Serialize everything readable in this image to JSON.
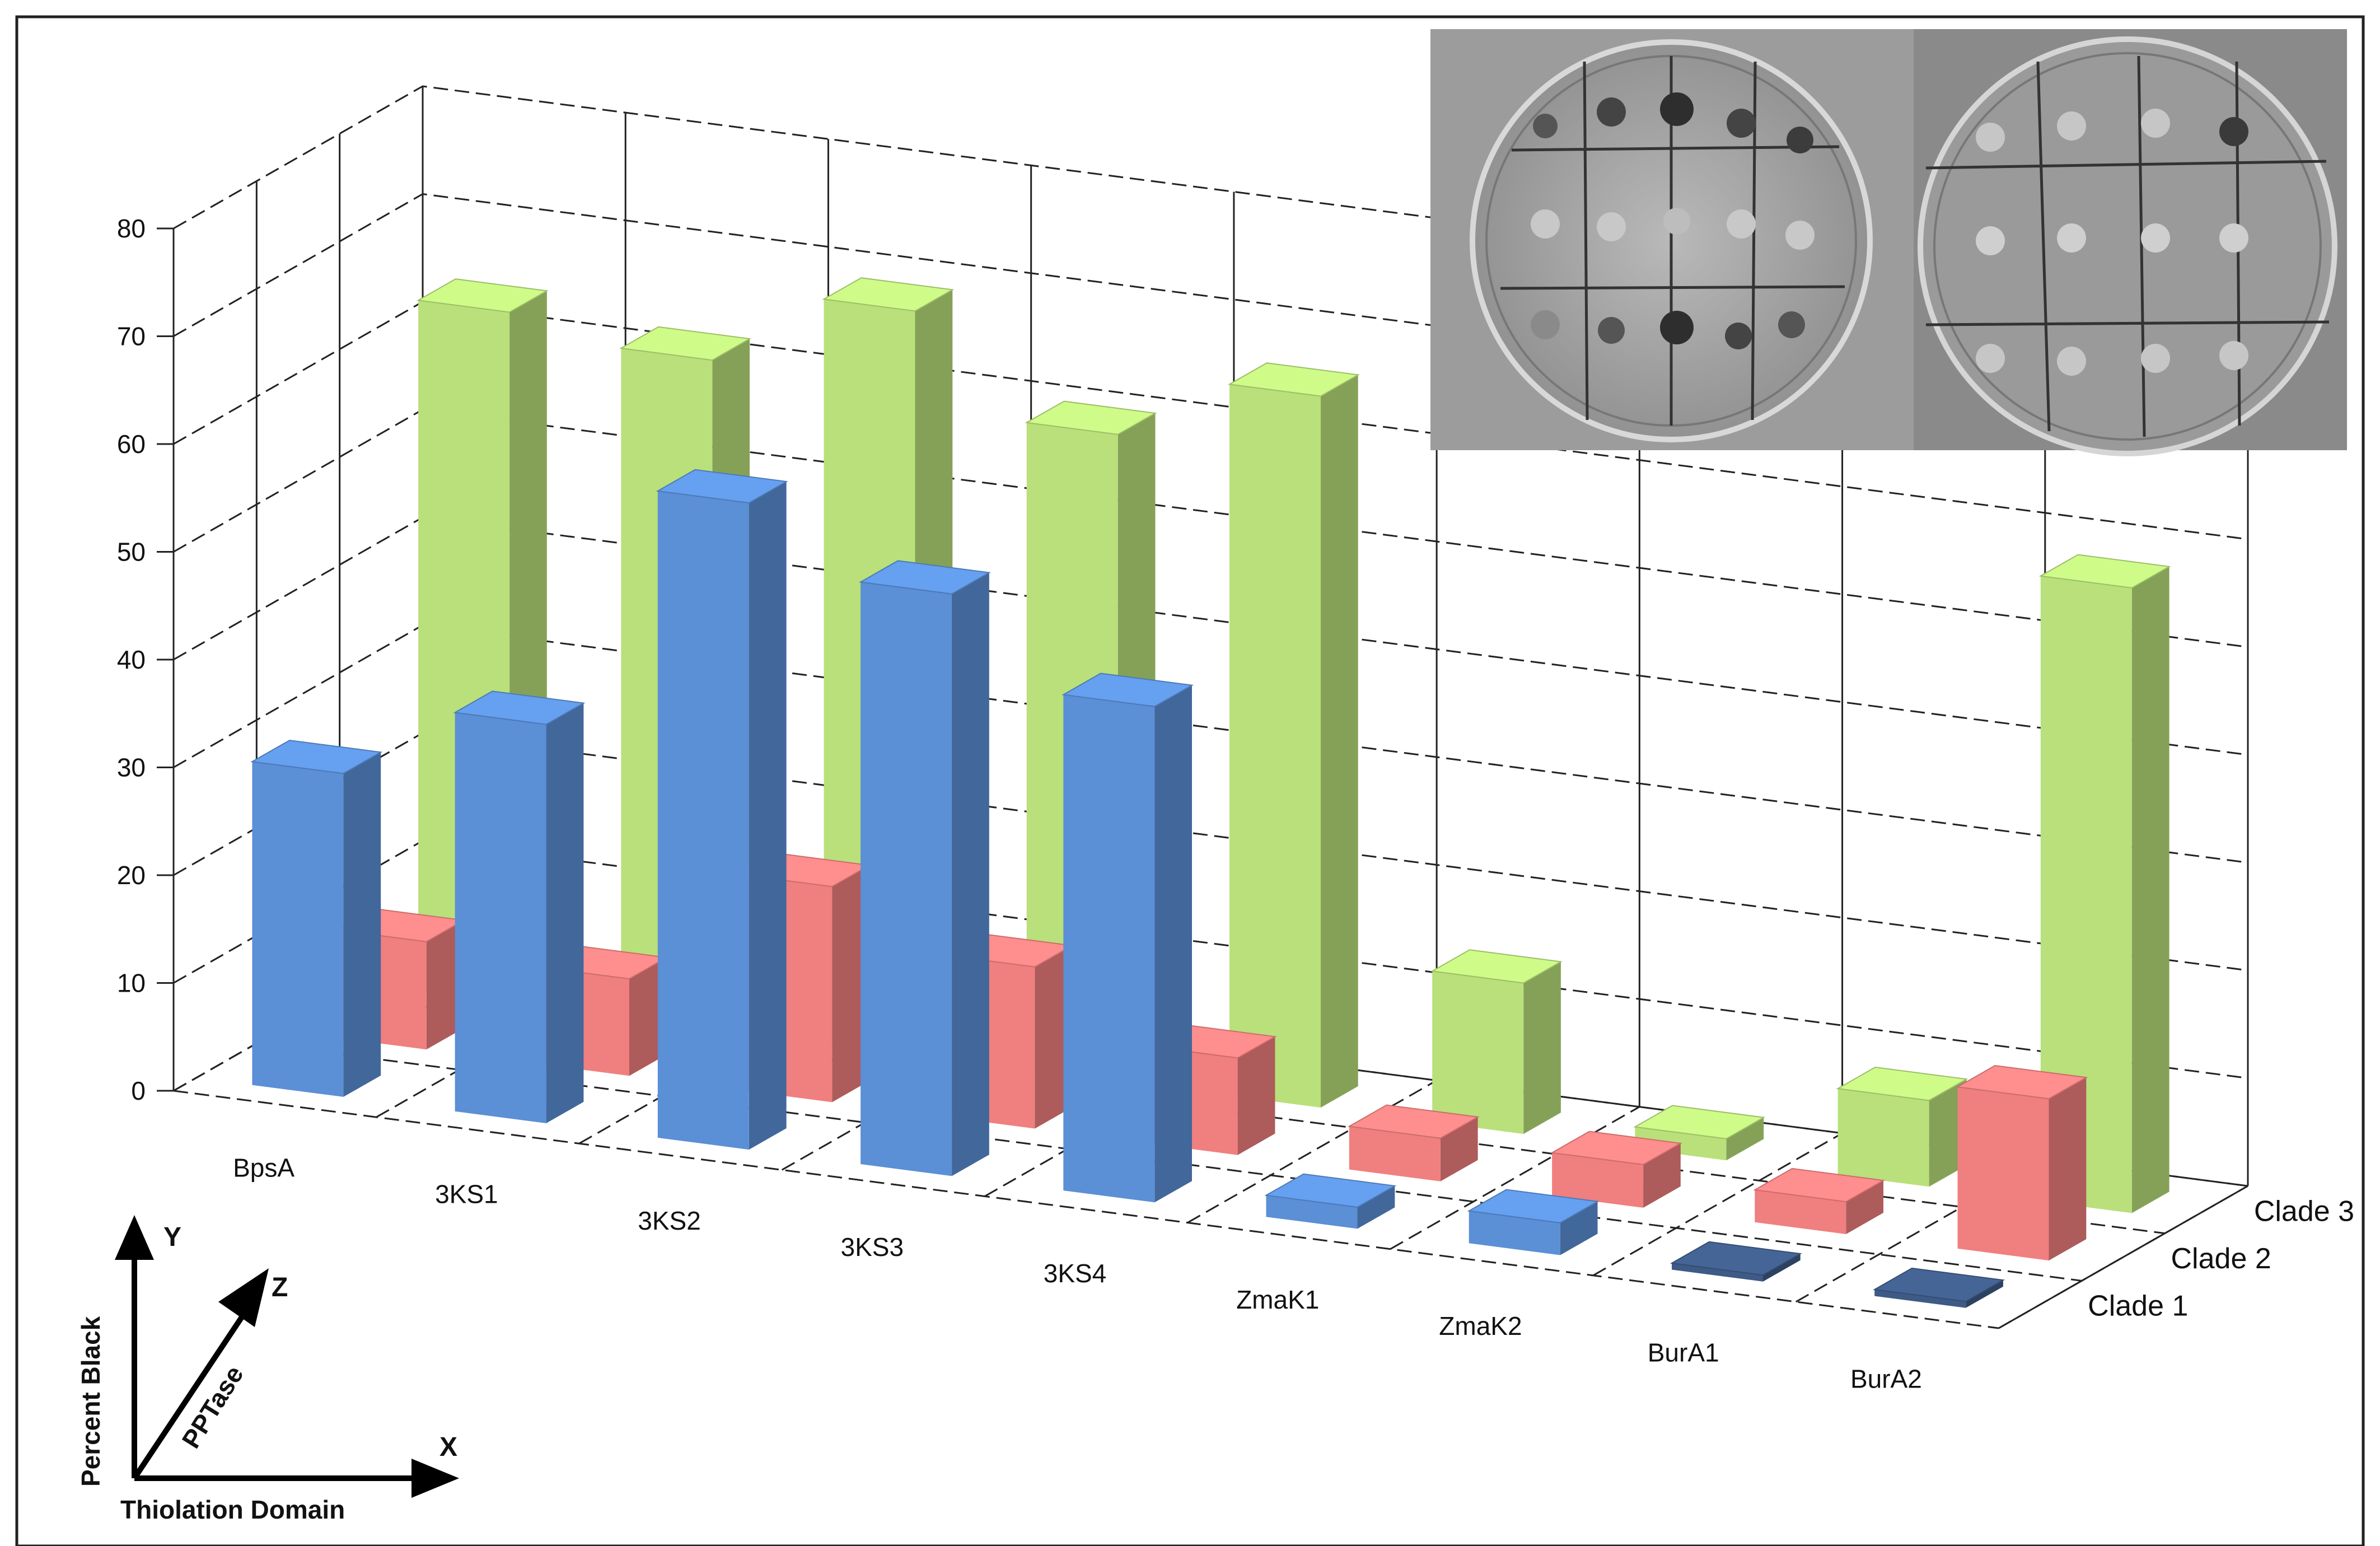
{
  "chart_data": {
    "type": "bar",
    "subtype": "3d-clustered",
    "categories": [
      "BpsA",
      "3KS1",
      "3KS2",
      "3KS3",
      "3KS4",
      "ZmaK1",
      "ZmaK2",
      "BurA1",
      "BurA2"
    ],
    "series": [
      {
        "name": "Clade 1",
        "values": [
          30,
          37,
          60,
          54,
          46,
          2,
          3,
          0,
          0
        ],
        "color": "#5b8fd6"
      },
      {
        "name": "Clade 2",
        "values": [
          10,
          9,
          20,
          15,
          9,
          4,
          4,
          3,
          15
        ],
        "color": "#f07f7f"
      },
      {
        "name": "Clade 3",
        "values": [
          64,
          62,
          69,
          60,
          66,
          14,
          2,
          8,
          58
        ],
        "color": "#b9e07a"
      }
    ],
    "ylim": [
      0,
      80
    ],
    "yticks": [
      "0",
      "10",
      "20",
      "30",
      "40",
      "50",
      "60",
      "70",
      "80"
    ],
    "grid": true,
    "zero_bar_color": "#3e5a86",
    "axis_key": {
      "y_letter": "Y",
      "x_letter": "X",
      "z_letter": "Z",
      "y_label": "Percent Black",
      "x_label": "Thiolation Domain",
      "z_label": "PPTase"
    }
  }
}
